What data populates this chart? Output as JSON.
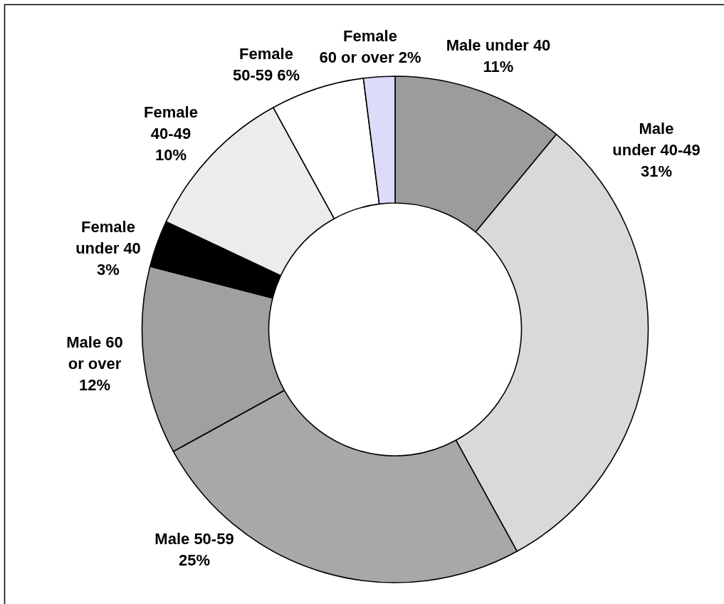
{
  "chart_data": {
    "type": "donut",
    "categories": [
      "Male under 40",
      "Male under 40-49",
      "Male 50-59",
      "Male 60 or over",
      "Female under 40",
      "Female 40-49",
      "Female 50-59",
      "Female 60 or over"
    ],
    "values": [
      11,
      31,
      25,
      12,
      3,
      10,
      6,
      2
    ],
    "value_labels": [
      "11%",
      "31%",
      "25%",
      "12%",
      "3%",
      "10%",
      "6%",
      "2%"
    ],
    "colors": [
      "#9c9c9c",
      "#d9d9d9",
      "#a8a8a8",
      "#a0a0a0",
      "#000000",
      "#ececec",
      "#ffffff",
      "#dcdcfa"
    ]
  }
}
